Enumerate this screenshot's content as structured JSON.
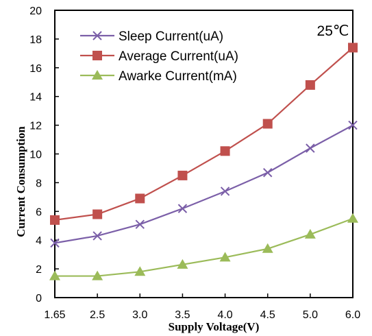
{
  "chart_data": {
    "type": "line",
    "xlabel": "Supply Voltage(V)",
    "ylabel": "Current  Consumption",
    "categories": [
      "1.65",
      "2.5",
      "3.0",
      "3.5",
      "4.0",
      "4.5",
      "5.0",
      "6.0"
    ],
    "ylim": [
      0,
      20
    ],
    "yticks": [
      "0",
      "2",
      "4",
      "6",
      "8",
      "10",
      "12",
      "14",
      "16",
      "18",
      "20"
    ],
    "grid": false,
    "legend_position": "top-left",
    "annotation": "25℃",
    "series": [
      {
        "name": "Sleep Current(uA)",
        "color": "#7B5FA8",
        "marker": "x",
        "values": [
          3.8,
          4.3,
          5.1,
          6.2,
          7.4,
          8.7,
          10.4,
          12.0
        ]
      },
      {
        "name": "Average Current(uA)",
        "color": "#C0504D",
        "marker": "square",
        "values": [
          5.4,
          5.8,
          6.9,
          8.5,
          10.2,
          12.1,
          14.8,
          17.4
        ]
      },
      {
        "name": "Awarke Current(mA)",
        "color": "#9BBB59",
        "marker": "triangle",
        "values": [
          1.5,
          1.5,
          1.8,
          2.3,
          2.8,
          3.4,
          4.4,
          5.5
        ]
      }
    ]
  }
}
